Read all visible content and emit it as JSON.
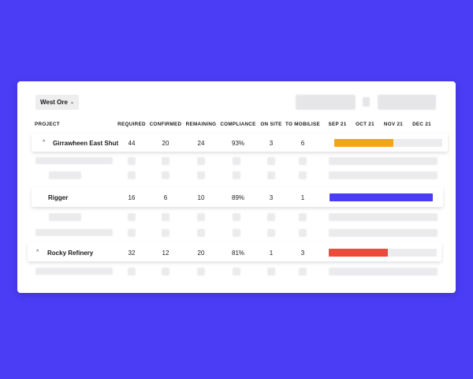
{
  "filter": {
    "selected": "West Ore",
    "chevron_icon": "chevron-down-icon"
  },
  "columns": [
    "PROJECT",
    "REQUIRED",
    "CONFIRMED",
    "REMAINING",
    "COMPLIANCE",
    "ON SITE",
    "TO MOBILISE"
  ],
  "months": [
    "SEP 21",
    "OCT 21",
    "NOV 21",
    "DEC 21"
  ],
  "rows": [
    {
      "name": "Girrawheen East Shut",
      "required": "44",
      "confirmed": "20",
      "remaining": "24",
      "compliance": "93%",
      "on_site": "3",
      "to_mobilise": "6",
      "progress": 0.55,
      "color": "#f5a31b",
      "caret": "^"
    },
    {
      "name": "Rigger",
      "required": "16",
      "confirmed": "6",
      "remaining": "10",
      "compliance": "89%",
      "on_site": "3",
      "to_mobilise": "1",
      "progress": 1.0,
      "color": "#4b3df5",
      "caret": ""
    },
    {
      "name": "Rocky Refinery",
      "required": "32",
      "confirmed": "12",
      "remaining": "20",
      "compliance": "81%",
      "on_site": "1",
      "to_mobilise": "3",
      "progress": 0.55,
      "color": "#e74c3c",
      "caret": "^"
    }
  ],
  "colors": {
    "background": "#4b3df5",
    "amber": "#f5a31b",
    "blue": "#4b3df5",
    "red": "#e74c3c"
  }
}
